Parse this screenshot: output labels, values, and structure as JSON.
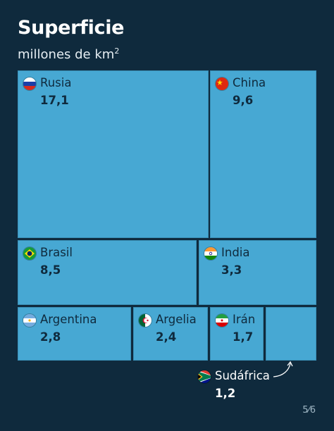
{
  "title": "Superficie",
  "subtitle_text": "millones de km",
  "subtitle_sup": "2",
  "pager": "5⁄6",
  "colors": {
    "background": "#0f2a3d",
    "cell": "#47a8d3",
    "text_dark": "#0f2a3d",
    "text_light": "#ffffff"
  },
  "chart_data": {
    "type": "treemap",
    "title": "Superficie",
    "subtitle": "millones de km²",
    "items": [
      {
        "name": "Rusia",
        "value": 17.1,
        "label": "17,1",
        "flag": "russia-flag"
      },
      {
        "name": "China",
        "value": 9.6,
        "label": "9,6",
        "flag": "china-flag"
      },
      {
        "name": "Brasil",
        "value": 8.5,
        "label": "8,5",
        "flag": "brazil-flag"
      },
      {
        "name": "India",
        "value": 3.3,
        "label": "3,3",
        "flag": "india-flag"
      },
      {
        "name": "Argentina",
        "value": 2.8,
        "label": "2,8",
        "flag": "argentina-flag"
      },
      {
        "name": "Argelia",
        "value": 2.4,
        "label": "2,4",
        "flag": "algeria-flag"
      },
      {
        "name": "Irán",
        "value": 1.7,
        "label": "1,7",
        "flag": "iran-flag"
      },
      {
        "name": "Sudáfrica",
        "value": 1.2,
        "label": "1,2",
        "flag": "south-africa-flag"
      }
    ]
  }
}
